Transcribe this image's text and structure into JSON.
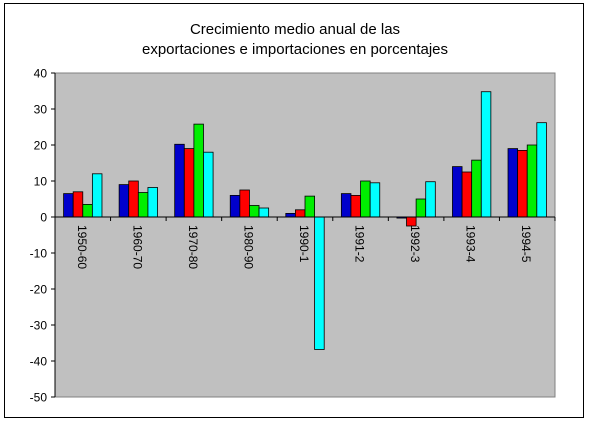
{
  "chart_data": {
    "type": "bar",
    "title_line1": "Crecimiento medio anual de las",
    "title_line2": "exportaciones e importaciones en porcentajes",
    "xlabel": "",
    "ylabel": "",
    "ylim": [
      -50,
      40
    ],
    "yticks": [
      40,
      30,
      20,
      10,
      0,
      -10,
      -20,
      -30,
      -40,
      -50
    ],
    "categories": [
      "1950-60",
      "1960-70",
      "1970-80",
      "1980-90",
      "1990-1",
      "1991-2",
      "1992-3",
      "1993-4",
      "1994-5"
    ],
    "series": [
      {
        "color": "#0000cc",
        "values": [
          6.5,
          9,
          20.2,
          6,
          1,
          6.5,
          -0.3,
          14,
          19
        ]
      },
      {
        "color": "#ff0000",
        "values": [
          7,
          10,
          19,
          7.5,
          2,
          6,
          -2.5,
          12.5,
          18.5
        ]
      },
      {
        "color": "#00ee00",
        "values": [
          3.5,
          6.8,
          25.8,
          3.2,
          5.8,
          10,
          5,
          15.8,
          20
        ]
      },
      {
        "color": "#00ffff",
        "values": [
          12,
          8.2,
          18,
          2.5,
          -36.8,
          9.5,
          9.8,
          34.8,
          26.2
        ]
      }
    ],
    "grid": false,
    "legend": "none",
    "plot_background": "#c0c0c0"
  }
}
